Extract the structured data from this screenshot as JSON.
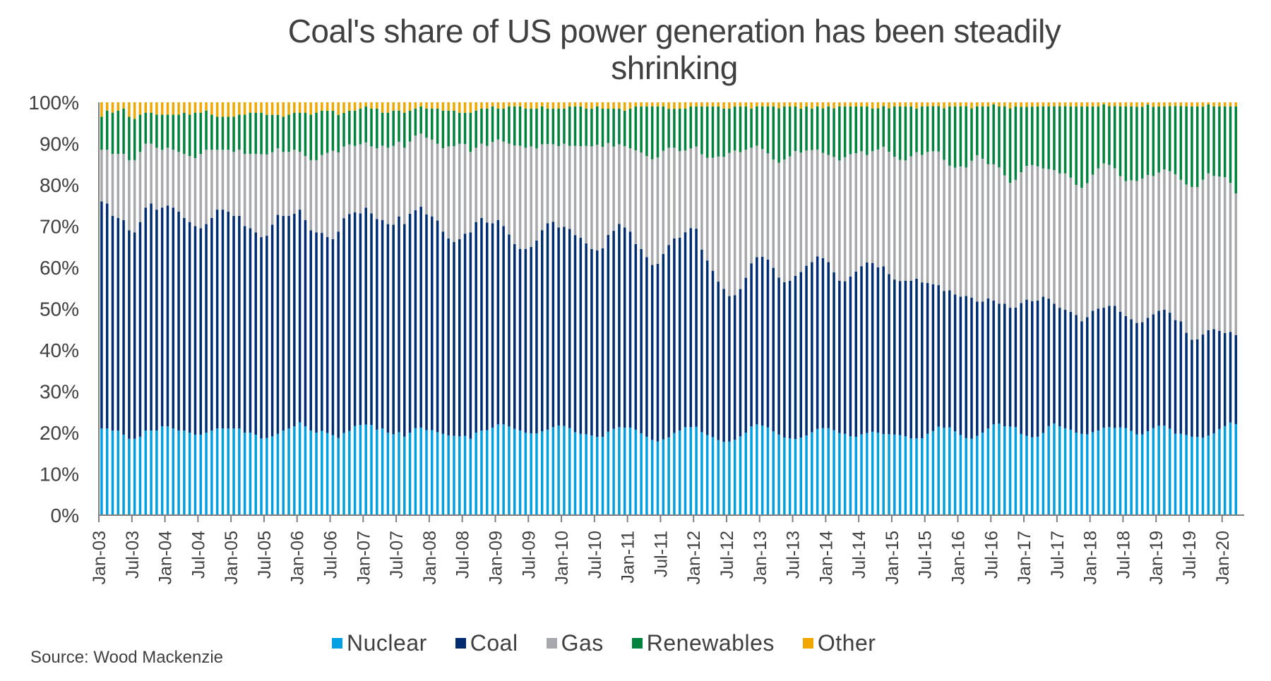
{
  "chart_data": {
    "type": "bar",
    "stacked": true,
    "normalized": true,
    "title": "Coal's share of US power generation has been steadily shrinking",
    "title_lines": [
      "Coal's share of US power generation has been steadily",
      "shrinking"
    ],
    "xlabel": "",
    "ylabel": "",
    "ylim": [
      0,
      100
    ],
    "y_ticks": [
      "0%",
      "10%",
      "20%",
      "30%",
      "40%",
      "50%",
      "60%",
      "70%",
      "80%",
      "90%",
      "100%"
    ],
    "x_start": "Jan-03",
    "x_end": "May-20",
    "x_frequency": "monthly",
    "x_ticks": [
      "Jan-03",
      "Jul-03",
      "Jan-04",
      "Jul-04",
      "Jan-05",
      "Jul-05",
      "Jan-06",
      "Jul-06",
      "Jan-07",
      "Jul-07",
      "Jan-08",
      "Jul-08",
      "Jan-09",
      "Jul-09",
      "Jan-10",
      "Jul-10",
      "Jan-11",
      "Jul-11",
      "Jan-12",
      "Jul-12",
      "Jan-13",
      "Jul-13",
      "Jan-14",
      "Jul-14",
      "Jan-15",
      "Jul-15",
      "Jan-16",
      "Jul-16",
      "Jan-17",
      "Jul-17",
      "Jan-18",
      "Jul-18",
      "Jan-19",
      "Jul-19",
      "Jan-20"
    ],
    "grid": false,
    "legend_position": "bottom",
    "series": [
      {
        "name": "Nuclear",
        "color": "#00a0e2",
        "values": [
          21,
          21,
          20.5,
          20.5,
          19.5,
          18.5,
          18.5,
          19,
          20.5,
          20.5,
          20.5,
          21.5,
          21.5,
          21,
          20.5,
          20.5,
          20,
          19.5,
          19.5,
          20,
          20.5,
          21,
          21,
          21,
          21,
          21,
          20,
          20,
          19.5,
          18.5,
          18.5,
          19,
          19.5,
          20.5,
          21,
          21.5,
          22.5,
          21.5,
          20.5,
          20,
          20,
          19.5,
          19,
          18.5,
          19.5,
          20,
          21.5,
          21.5,
          21.5,
          21.5,
          20.5,
          21,
          20,
          19.5,
          20,
          19,
          20,
          21,
          21,
          20.5,
          20.5,
          20,
          19.5,
          19,
          19,
          19,
          19,
          18.5,
          20,
          20.5,
          20.5,
          21,
          22,
          22,
          21.5,
          21,
          20.5,
          20,
          19.5,
          19.5,
          20,
          20.5,
          21,
          21.5,
          21.5,
          21,
          20,
          19.5,
          19.5,
          19,
          18.5,
          18.5,
          19.5,
          20.5,
          21,
          21,
          21,
          20.5,
          19.5,
          19,
          18.5,
          18,
          18,
          18,
          19,
          20,
          21,
          21,
          21,
          20,
          19.5,
          19,
          18,
          17.5,
          17.5,
          18,
          19,
          20,
          21.5,
          22,
          22,
          21.5,
          20.5,
          20,
          19,
          18.5,
          18,
          18.5,
          19,
          20,
          21,
          21.5,
          21.5,
          21,
          20.5,
          20,
          19,
          18.5,
          19,
          19.5,
          20.5,
          21,
          21,
          20.5,
          20,
          19.5,
          19,
          18.5,
          18.5,
          19,
          20.5,
          21.5,
          22.5,
          22,
          21.5,
          20.5,
          20,
          19.5,
          19,
          19.5,
          20.5,
          21,
          22,
          22.5,
          22.5,
          22,
          21,
          18,
          17.5,
          18,
          19,
          20.5,
          22,
          23,
          22.5,
          22,
          21,
          20,
          19.5,
          19,
          19.5,
          20.5,
          21.5,
          22.5,
          22.5,
          22,
          21,
          20,
          18.5,
          18,
          18.5,
          19.5,
          21,
          22,
          22,
          21.5,
          21,
          20,
          19,
          18.5,
          18,
          18.5,
          20,
          21.5,
          22,
          23,
          22.5,
          22
        ]
      },
      {
        "name": "Coal",
        "color": "#002d72",
        "values": [
          55,
          54.5,
          52,
          51.5,
          52,
          50.5,
          50,
          52,
          54,
          55,
          53.5,
          53,
          53.5,
          53.5,
          53,
          51.5,
          51,
          50.5,
          50,
          50.5,
          51.5,
          53,
          53,
          52.5,
          51.5,
          51.5,
          50,
          49.5,
          49,
          48.5,
          48.5,
          51,
          52.5,
          52,
          51.5,
          51.5,
          51.5,
          50,
          48.5,
          48.5,
          47,
          46.5,
          46.5,
          49.5,
          51,
          51.5,
          51.5,
          50.5,
          51.5,
          50.5,
          50.5,
          50.5,
          50.5,
          50.5,
          52,
          51.5,
          53,
          52.5,
          53,
          52,
          51.5,
          51,
          48.5,
          47,
          46.5,
          47.5,
          48.5,
          50,
          51,
          51.5,
          50,
          49,
          49.5,
          48,
          46.5,
          45,
          44,
          44.5,
          44.5,
          46,
          48,
          49.5,
          49,
          47.5,
          48,
          48,
          47.5,
          47,
          46,
          44.5,
          44,
          44.5,
          46,
          47,
          48.5,
          48,
          47,
          44.5,
          44,
          43.5,
          43,
          43.5,
          44,
          44.5,
          45,
          45.5,
          46.5,
          47.5,
          47,
          44,
          42.5,
          40.5,
          38,
          36.5,
          34.5,
          34.5,
          35.5,
          37.5,
          39.5,
          40.5,
          41.5,
          41,
          40,
          39,
          38,
          38,
          38.5,
          39.5,
          40.5,
          41,
          42,
          42,
          41,
          39,
          38,
          37.5,
          38.5,
          39,
          39.5,
          40.5,
          41.5,
          42,
          43.5,
          40.5,
          38.5,
          37.5,
          37.5,
          38,
          38.5,
          38.5,
          38,
          37.5,
          36,
          34.5,
          33.5,
          33.5,
          34.5,
          36,
          35,
          33,
          32.5,
          31.5,
          30,
          29.5,
          31,
          29.5,
          28.5,
          29,
          30,
          31.5,
          33,
          34,
          31.5,
          30,
          30,
          30,
          29,
          28.5,
          27,
          27.5,
          28.5,
          29.5,
          29.5,
          31,
          31.5,
          29,
          27,
          26.5,
          25.5,
          25,
          25,
          25.5,
          27,
          28.5,
          29.5,
          30,
          29,
          25.5,
          23.5,
          23,
          24,
          24.5,
          25.5,
          24.5,
          23,
          22.5,
          22,
          20.5,
          19,
          17.5,
          15
        ]
      },
      {
        "name": "Gas",
        "color": "#a6a8ab",
        "values": [
          12.5,
          13,
          15,
          15.5,
          16,
          17,
          17.5,
          17,
          15.5,
          14.5,
          15,
          14,
          14,
          14,
          14.5,
          15.5,
          16,
          16.5,
          18,
          18,
          16.5,
          14.5,
          14.5,
          15,
          15.5,
          16,
          17.5,
          18,
          19,
          20,
          19.5,
          17.5,
          16,
          15.5,
          15.5,
          15.5,
          14,
          15.5,
          17,
          17.5,
          18.5,
          20,
          21,
          19,
          17,
          16.5,
          16,
          16.5,
          15.5,
          16,
          17,
          18,
          18.5,
          19,
          18,
          18.5,
          17.5,
          18,
          17.5,
          18.5,
          18.5,
          18.5,
          20,
          22,
          23,
          23,
          21.5,
          19.5,
          18,
          18,
          18.5,
          19.5,
          19.5,
          20.5,
          22,
          24,
          25,
          24.5,
          24,
          22,
          20.5,
          19,
          18.5,
          19.5,
          20,
          20,
          21.5,
          22,
          23.5,
          24.5,
          25,
          24,
          21.5,
          20,
          19,
          19.5,
          20,
          22.5,
          23,
          24.5,
          26,
          26,
          24.5,
          22.5,
          21,
          20.5,
          19.5,
          19,
          19.5,
          23,
          25,
          27.5,
          30,
          31.5,
          34,
          34.5,
          33,
          31,
          28,
          27,
          26.5,
          26,
          26.5,
          28.5,
          30,
          30,
          29.5,
          28.5,
          27.5,
          27,
          26,
          26,
          26.5,
          28.5,
          30,
          30.5,
          29.5,
          28,
          27,
          25.5,
          27.5,
          30,
          31,
          31,
          30.5,
          29.5,
          29,
          30,
          30.5,
          31.5,
          33,
          34,
          34,
          33,
          30.5,
          31,
          32.5,
          32.5,
          34,
          36,
          35.5,
          32.5,
          33,
          33.5,
          32.5,
          31,
          30.5,
          29,
          29.5,
          31.5,
          32.5,
          32,
          32,
          33.5,
          34,
          34.5,
          33,
          31.5,
          32,
          31.5,
          32,
          34,
          35.5,
          36,
          35.5,
          34,
          32.5,
          33,
          32.5,
          32,
          31.5,
          31,
          32.5,
          34.5,
          36,
          38.5,
          36.5,
          37,
          37,
          36,
          36,
          36.5,
          37.5,
          38.5,
          38.5,
          37,
          35
        ]
      },
      {
        "name": "Renewables",
        "color": "#00843d",
        "values": [
          8,
          9.5,
          10,
          10.5,
          11,
          10.5,
          10,
          9,
          7.5,
          7.5,
          8,
          8.5,
          8,
          8.5,
          9,
          10,
          10,
          11,
          10,
          9.5,
          8.5,
          8,
          8,
          8,
          8.5,
          8.5,
          9.5,
          10,
          10,
          10,
          9.5,
          9,
          8,
          8.5,
          9,
          9,
          9.5,
          10.5,
          11,
          11.5,
          10.5,
          10,
          9.5,
          9,
          8,
          8,
          8.5,
          8.5,
          8.5,
          9,
          9.5,
          8,
          8.5,
          8.5,
          7.5,
          8.5,
          7.5,
          6.5,
          6.5,
          7,
          7.5,
          8.5,
          9,
          8.5,
          8.5,
          7.5,
          7.5,
          9.5,
          9,
          8.5,
          9,
          8.5,
          7.5,
          8,
          9,
          9.5,
          9.5,
          9.5,
          9,
          9.5,
          9,
          8.5,
          8.5,
          9,
          8.5,
          9.5,
          9.5,
          9.5,
          9,
          9,
          9,
          9,
          8,
          9,
          8.5,
          8.5,
          9.5,
          10.5,
          11,
          12,
          13,
          12.5,
          10.5,
          9,
          9,
          10,
          10,
          10,
          9.5,
          11.5,
          12.5,
          12.5,
          12,
          11.5,
          10.5,
          10.5,
          11,
          10.5,
          9.5,
          9.5,
          10.5,
          11.5,
          13,
          13.5,
          13,
          12,
          10.5,
          10.5,
          10.5,
          10,
          10.5,
          11,
          12,
          12,
          13.5,
          12.5,
          11.5,
          11,
          10.5,
          11.5,
          10.5,
          10.5,
          10.5,
          11,
          12.5,
          13,
          13,
          12,
          10.5,
          12,
          11.5,
          11.5,
          11.5,
          13,
          14.5,
          15,
          15,
          15.5,
          13,
          12,
          13,
          14,
          14.5,
          15,
          17.5,
          18.5,
          17.5,
          14.5,
          13,
          13.5,
          14.5,
          15.5,
          15.5,
          16,
          17,
          17,
          17.5,
          19,
          19.5,
          18,
          16,
          15,
          14.5,
          15,
          16,
          17.5,
          18,
          17.5,
          17,
          16,
          15.5,
          15.5,
          15.5,
          15.5,
          16.5,
          18,
          19,
          19.5,
          19.5,
          19,
          17,
          16,
          17,
          17.5,
          17.5,
          19,
          21.5,
          23,
          24,
          25.5,
          26.5
        ]
      },
      {
        "name": "Other",
        "color": "#f0a800",
        "values": [
          3.5,
          2,
          2.5,
          2,
          1.5,
          3.5,
          4,
          3,
          2.5,
          2.5,
          3,
          3,
          3,
          3,
          3,
          2.5,
          3,
          2.5,
          2.5,
          2,
          3,
          3.5,
          3.5,
          3.5,
          3.5,
          3,
          3,
          2.5,
          2.5,
          2.5,
          3,
          3,
          3,
          3.5,
          3,
          2.5,
          2.5,
          2.5,
          3,
          2.5,
          2,
          2,
          2,
          3,
          2.5,
          2,
          2,
          1.5,
          1,
          1.5,
          1.5,
          2.5,
          2.5,
          2,
          2,
          2.5,
          2,
          1.5,
          1,
          1.5,
          1.5,
          1.5,
          2,
          2,
          2,
          2.5,
          2.5,
          2.5,
          2,
          1.5,
          1.5,
          1,
          1.5,
          1.5,
          1,
          1,
          1,
          1.5,
          1.5,
          1.5,
          1,
          1.5,
          1.5,
          1.5,
          1.5,
          1,
          1,
          1,
          1.5,
          1.5,
          1,
          1.5,
          1.5,
          1.5,
          1.5,
          2,
          1.5,
          1,
          1,
          1,
          1,
          1,
          1,
          1.5,
          1.5,
          1.5,
          1.5,
          1,
          1,
          1,
          1,
          1,
          1,
          1.5,
          1.5,
          1,
          1,
          1,
          1.5,
          1,
          1,
          1,
          1,
          1.5,
          1,
          1,
          1,
          1.5,
          1,
          1.5,
          1,
          1.5,
          1,
          1.5,
          1,
          1,
          1,
          1,
          1,
          1,
          1.5,
          1.5,
          1,
          1.5,
          1,
          1,
          1,
          1,
          1.5,
          1,
          1,
          1,
          1,
          1.5,
          1,
          1,
          1,
          1,
          1.5,
          1,
          1,
          1,
          0.5,
          1,
          1,
          1.5,
          1,
          1,
          1,
          1,
          1,
          1,
          1,
          1,
          1,
          1,
          1,
          1,
          1,
          1,
          1,
          1,
          0.5,
          1,
          1,
          1,
          1,
          1,
          1,
          1,
          0.5,
          1,
          1,
          1,
          1,
          1,
          1,
          1,
          1,
          1,
          1,
          0.5,
          1,
          1,
          1,
          1,
          1,
          1,
          1,
          1,
          1,
          1,
          1,
          1,
          1
        ]
      }
    ]
  },
  "source": "Source: Wood Mackenzie"
}
